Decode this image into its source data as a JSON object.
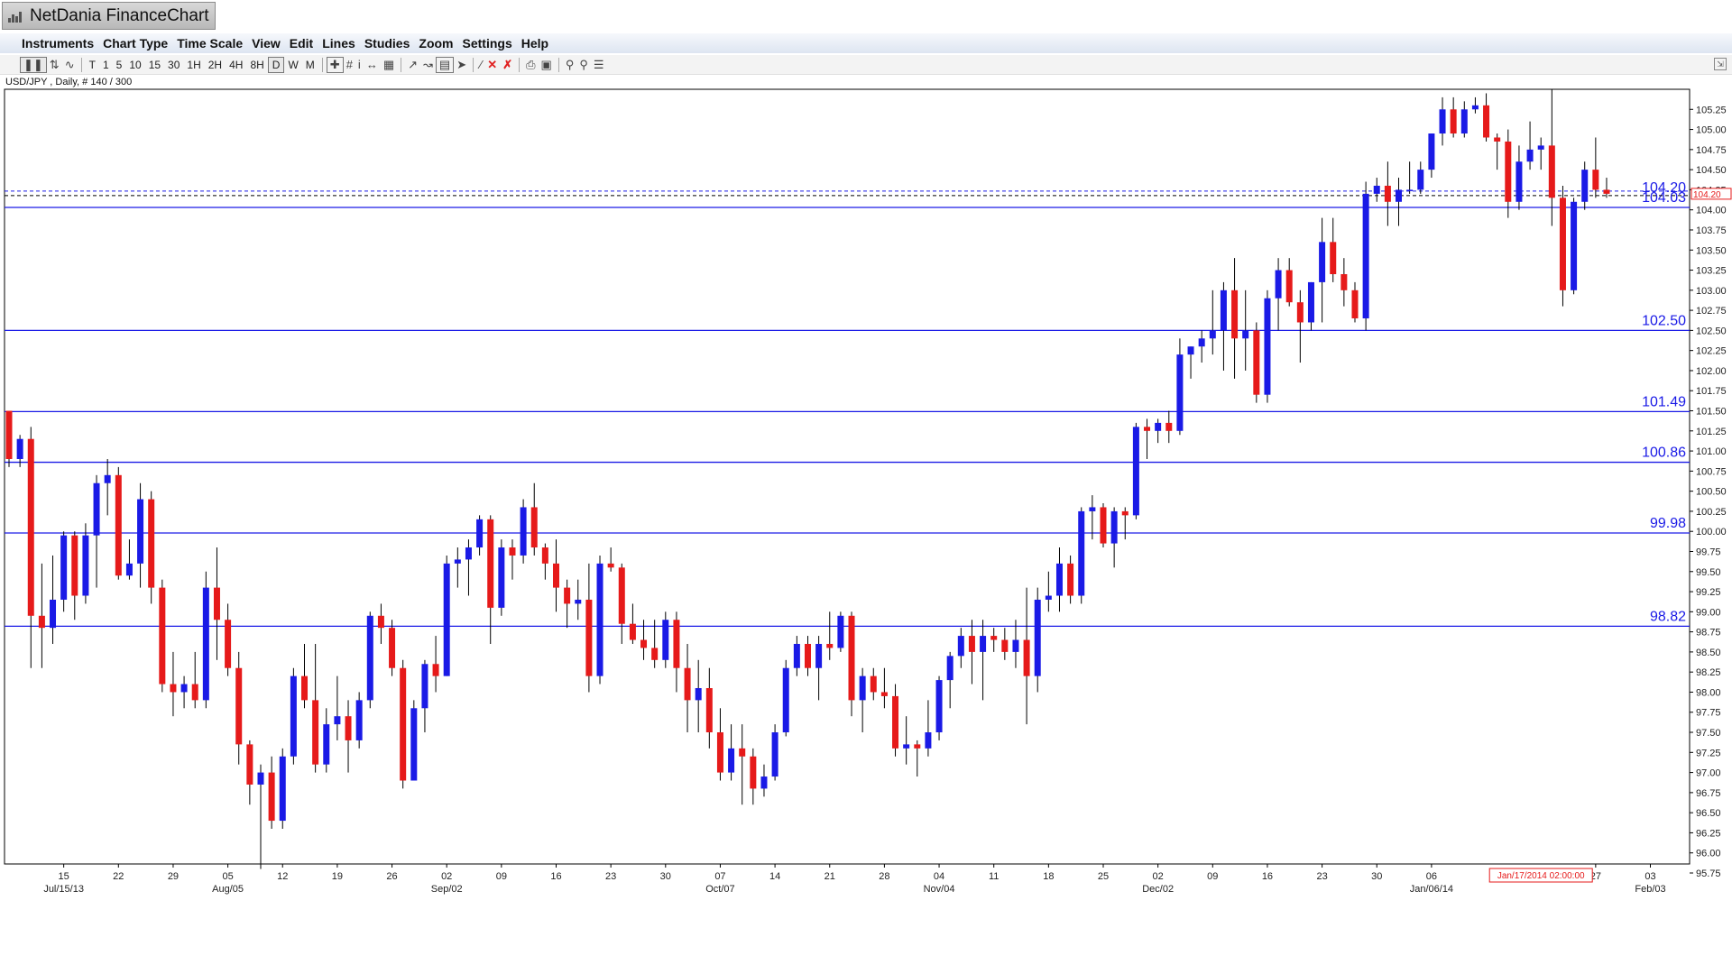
{
  "app": {
    "title": "NetDania FinanceChart"
  },
  "menu": [
    "Instruments",
    "Chart Type",
    "Time Scale",
    "View",
    "Edit",
    "Lines",
    "Studies",
    "Zoom",
    "Settings",
    "Help"
  ],
  "toolbar": {
    "timeframes": [
      "T",
      "1",
      "5",
      "10",
      "15",
      "30",
      "1H",
      "2H",
      "4H",
      "8H",
      "D",
      "W",
      "M"
    ],
    "selected": "D"
  },
  "instrument_label": "USD/JPY , Daily, # 140 / 300",
  "colors": {
    "up": "#1a1ae6",
    "down": "#e61a1a",
    "line": "#1a1ae6",
    "axis": "#000000",
    "marker": "#e61a1a"
  },
  "chart_data": {
    "type": "candlestick",
    "symbol": "USD/JPY",
    "ylim": [
      95.75,
      105.5
    ],
    "yticks": [
      95.75,
      96.0,
      96.25,
      96.5,
      96.75,
      97.0,
      97.25,
      97.5,
      97.75,
      98.0,
      98.25,
      98.5,
      98.75,
      99.0,
      99.25,
      99.5,
      99.75,
      100.0,
      100.25,
      100.5,
      100.75,
      101.0,
      101.25,
      101.5,
      101.75,
      102.0,
      102.25,
      102.5,
      102.75,
      103.0,
      103.25,
      103.5,
      103.75,
      104.0,
      104.25,
      104.5,
      104.75,
      105.0,
      105.25
    ],
    "x_ticks": [
      {
        "i": 5,
        "label": "15",
        "sub": "Jul/15/13"
      },
      {
        "i": 10,
        "label": "22",
        "sub": ""
      },
      {
        "i": 15,
        "label": "29",
        "sub": ""
      },
      {
        "i": 20,
        "label": "05",
        "sub": "Aug/05"
      },
      {
        "i": 25,
        "label": "12",
        "sub": ""
      },
      {
        "i": 30,
        "label": "19",
        "sub": ""
      },
      {
        "i": 35,
        "label": "26",
        "sub": ""
      },
      {
        "i": 40,
        "label": "02",
        "sub": "Sep/02"
      },
      {
        "i": 45,
        "label": "09",
        "sub": ""
      },
      {
        "i": 50,
        "label": "16",
        "sub": ""
      },
      {
        "i": 55,
        "label": "23",
        "sub": ""
      },
      {
        "i": 60,
        "label": "30",
        "sub": ""
      },
      {
        "i": 65,
        "label": "07",
        "sub": "Oct/07"
      },
      {
        "i": 70,
        "label": "14",
        "sub": ""
      },
      {
        "i": 75,
        "label": "21",
        "sub": ""
      },
      {
        "i": 80,
        "label": "28",
        "sub": ""
      },
      {
        "i": 85,
        "label": "04",
        "sub": "Nov/04"
      },
      {
        "i": 90,
        "label": "11",
        "sub": ""
      },
      {
        "i": 95,
        "label": "18",
        "sub": ""
      },
      {
        "i": 100,
        "label": "25",
        "sub": ""
      },
      {
        "i": 105,
        "label": "02",
        "sub": "Dec/02"
      },
      {
        "i": 110,
        "label": "09",
        "sub": ""
      },
      {
        "i": 115,
        "label": "16",
        "sub": ""
      },
      {
        "i": 120,
        "label": "23",
        "sub": ""
      },
      {
        "i": 125,
        "label": "30",
        "sub": ""
      },
      {
        "i": 130,
        "label": "06",
        "sub": "Jan/06/14"
      },
      {
        "i": 145,
        "label": "27",
        "sub": ""
      },
      {
        "i": 150,
        "label": "03",
        "sub": "Feb/03"
      }
    ],
    "cursor_date": {
      "i": 140,
      "label": "Jan/17/2014 02:00:00"
    },
    "hlines": [
      {
        "value": 104.03,
        "label": "104.03"
      },
      {
        "value": 102.5,
        "label": "102.50"
      },
      {
        "value": 101.49,
        "label": "101.49"
      },
      {
        "value": 100.86,
        "label": "100.86"
      },
      {
        "value": 99.98,
        "label": "99.98"
      },
      {
        "value": 98.82,
        "label": "98.82"
      }
    ],
    "last_price": {
      "value": 104.2,
      "label": "104.20"
    },
    "candles": [
      [
        101.5,
        101.5,
        100.8,
        100.9
      ],
      [
        100.9,
        101.2,
        100.8,
        101.15
      ],
      [
        101.15,
        101.3,
        98.3,
        98.95
      ],
      [
        98.95,
        99.6,
        98.3,
        98.8
      ],
      [
        98.8,
        99.7,
        98.6,
        99.15
      ],
      [
        99.15,
        100.0,
        99.0,
        99.95
      ],
      [
        99.95,
        100.0,
        98.9,
        99.2
      ],
      [
        99.2,
        100.1,
        99.1,
        99.95
      ],
      [
        99.95,
        100.7,
        99.3,
        100.6
      ],
      [
        100.6,
        100.9,
        100.2,
        100.7
      ],
      [
        100.7,
        100.8,
        99.4,
        99.45
      ],
      [
        99.45,
        99.9,
        99.4,
        99.6
      ],
      [
        99.6,
        100.6,
        99.3,
        100.4
      ],
      [
        100.4,
        100.5,
        99.1,
        99.3
      ],
      [
        99.3,
        99.4,
        98.0,
        98.1
      ],
      [
        98.1,
        98.5,
        97.7,
        98.0
      ],
      [
        98.0,
        98.2,
        97.8,
        98.1
      ],
      [
        98.1,
        98.5,
        97.8,
        97.9
      ],
      [
        97.9,
        99.5,
        97.8,
        99.3
      ],
      [
        99.3,
        99.8,
        98.4,
        98.9
      ],
      [
        98.9,
        99.1,
        98.2,
        98.3
      ],
      [
        98.3,
        98.5,
        97.1,
        97.35
      ],
      [
        97.35,
        97.4,
        96.6,
        96.85
      ],
      [
        96.85,
        97.1,
        95.8,
        97.0
      ],
      [
        97.0,
        97.2,
        96.3,
        96.4
      ],
      [
        96.4,
        97.3,
        96.3,
        97.2
      ],
      [
        97.2,
        98.3,
        97.1,
        98.2
      ],
      [
        98.2,
        98.6,
        97.8,
        97.9
      ],
      [
        97.9,
        98.6,
        97.0,
        97.1
      ],
      [
        97.1,
        97.8,
        97.0,
        97.6
      ],
      [
        97.6,
        98.2,
        97.4,
        97.7
      ],
      [
        97.7,
        97.9,
        97.0,
        97.4
      ],
      [
        97.4,
        98.0,
        97.3,
        97.9
      ],
      [
        97.9,
        99.0,
        97.8,
        98.95
      ],
      [
        98.95,
        99.1,
        98.6,
        98.8
      ],
      [
        98.8,
        98.9,
        98.2,
        98.3
      ],
      [
        98.3,
        98.4,
        96.8,
        96.9
      ],
      [
        96.9,
        97.9,
        96.9,
        97.8
      ],
      [
        97.8,
        98.4,
        97.5,
        98.35
      ],
      [
        98.35,
        98.7,
        98.0,
        98.2
      ],
      [
        98.2,
        99.7,
        98.2,
        99.6
      ],
      [
        99.6,
        99.8,
        99.3,
        99.65
      ],
      [
        99.65,
        99.9,
        99.2,
        99.8
      ],
      [
        99.8,
        100.2,
        99.7,
        100.15
      ],
      [
        100.15,
        100.2,
        98.6,
        99.05
      ],
      [
        99.05,
        99.9,
        98.95,
        99.8
      ],
      [
        99.8,
        99.9,
        99.4,
        99.7
      ],
      [
        99.7,
        100.4,
        99.6,
        100.3
      ],
      [
        100.3,
        100.6,
        99.7,
        99.8
      ],
      [
        99.8,
        99.85,
        99.4,
        99.6
      ],
      [
        99.6,
        99.9,
        99.0,
        99.3
      ],
      [
        99.3,
        99.4,
        98.8,
        99.1
      ],
      [
        99.1,
        99.4,
        98.9,
        99.15
      ],
      [
        99.15,
        99.6,
        98.0,
        98.2
      ],
      [
        98.2,
        99.7,
        98.1,
        99.6
      ],
      [
        99.6,
        99.8,
        99.5,
        99.55
      ],
      [
        99.55,
        99.6,
        98.6,
        98.85
      ],
      [
        98.85,
        99.1,
        98.6,
        98.65
      ],
      [
        98.65,
        98.9,
        98.4,
        98.55
      ],
      [
        98.55,
        98.9,
        98.3,
        98.4
      ],
      [
        98.4,
        99.0,
        98.3,
        98.9
      ],
      [
        98.9,
        99.0,
        98.0,
        98.3
      ],
      [
        98.3,
        98.6,
        97.5,
        97.9
      ],
      [
        97.9,
        98.4,
        97.5,
        98.05
      ],
      [
        98.05,
        98.3,
        97.3,
        97.5
      ],
      [
        97.5,
        97.8,
        96.9,
        97.0
      ],
      [
        97.0,
        97.6,
        96.9,
        97.3
      ],
      [
        97.3,
        97.6,
        96.6,
        97.2
      ],
      [
        97.2,
        97.3,
        96.6,
        96.8
      ],
      [
        96.8,
        97.1,
        96.7,
        96.95
      ],
      [
        96.95,
        97.6,
        96.9,
        97.5
      ],
      [
        97.5,
        98.4,
        97.45,
        98.3
      ],
      [
        98.3,
        98.7,
        98.2,
        98.6
      ],
      [
        98.6,
        98.7,
        98.2,
        98.3
      ],
      [
        98.3,
        98.7,
        97.9,
        98.6
      ],
      [
        98.6,
        99.0,
        98.4,
        98.55
      ],
      [
        98.55,
        99.0,
        98.5,
        98.95
      ],
      [
        98.95,
        99.0,
        97.7,
        97.9
      ],
      [
        97.9,
        98.3,
        97.5,
        98.2
      ],
      [
        98.2,
        98.3,
        97.9,
        98.0
      ],
      [
        98.0,
        98.3,
        97.8,
        97.95
      ],
      [
        97.95,
        98.1,
        97.2,
        97.3
      ],
      [
        97.3,
        97.7,
        97.1,
        97.35
      ],
      [
        97.35,
        97.4,
        96.95,
        97.3
      ],
      [
        97.3,
        97.9,
        97.2,
        97.5
      ],
      [
        97.5,
        98.2,
        97.4,
        98.15
      ],
      [
        98.15,
        98.5,
        97.8,
        98.45
      ],
      [
        98.45,
        98.8,
        98.3,
        98.7
      ],
      [
        98.7,
        98.9,
        98.1,
        98.5
      ],
      [
        98.5,
        98.9,
        97.9,
        98.7
      ],
      [
        98.7,
        98.8,
        98.5,
        98.65
      ],
      [
        98.65,
        98.8,
        98.4,
        98.5
      ],
      [
        98.5,
        98.9,
        98.3,
        98.65
      ],
      [
        98.65,
        99.3,
        97.6,
        98.2
      ],
      [
        98.2,
        99.3,
        98.0,
        99.15
      ],
      [
        99.15,
        99.5,
        99.0,
        99.2
      ],
      [
        99.2,
        99.8,
        99.0,
        99.6
      ],
      [
        99.6,
        99.7,
        99.1,
        99.2
      ],
      [
        99.2,
        100.3,
        99.1,
        100.25
      ],
      [
        100.25,
        100.45,
        99.9,
        100.3
      ],
      [
        100.3,
        100.35,
        99.8,
        99.85
      ],
      [
        99.85,
        100.3,
        99.55,
        100.25
      ],
      [
        100.25,
        100.3,
        99.9,
        100.2
      ],
      [
        100.2,
        101.35,
        100.15,
        101.3
      ],
      [
        101.3,
        101.4,
        100.9,
        101.25
      ],
      [
        101.25,
        101.4,
        101.1,
        101.35
      ],
      [
        101.35,
        101.5,
        101.1,
        101.25
      ],
      [
        101.25,
        102.4,
        101.2,
        102.2
      ],
      [
        102.2,
        102.3,
        101.9,
        102.3
      ],
      [
        102.3,
        102.5,
        102.1,
        102.4
      ],
      [
        102.4,
        103.0,
        102.2,
        102.5
      ],
      [
        102.5,
        103.1,
        102.0,
        103.0
      ],
      [
        103.0,
        103.4,
        101.9,
        102.4
      ],
      [
        102.4,
        103.0,
        102.0,
        102.5
      ],
      [
        102.5,
        102.6,
        101.6,
        101.7
      ],
      [
        101.7,
        103.0,
        101.6,
        102.9
      ],
      [
        102.9,
        103.4,
        102.5,
        103.25
      ],
      [
        103.25,
        103.4,
        102.8,
        102.85
      ],
      [
        102.85,
        103.0,
        102.1,
        102.6
      ],
      [
        102.6,
        103.1,
        102.5,
        103.1
      ],
      [
        103.1,
        103.9,
        102.6,
        103.6
      ],
      [
        103.6,
        103.9,
        103.1,
        103.2
      ],
      [
        103.2,
        103.4,
        102.8,
        103.0
      ],
      [
        103.0,
        103.1,
        102.6,
        102.65
      ],
      [
        102.65,
        104.35,
        102.5,
        104.2
      ],
      [
        104.2,
        104.4,
        104.1,
        104.3
      ],
      [
        104.3,
        104.6,
        103.8,
        104.1
      ],
      [
        104.1,
        104.4,
        103.8,
        104.25
      ],
      [
        104.25,
        104.6,
        104.2,
        104.25
      ],
      [
        104.25,
        104.6,
        104.2,
        104.5
      ],
      [
        104.5,
        104.95,
        104.4,
        104.95
      ],
      [
        104.95,
        105.4,
        104.8,
        105.25
      ],
      [
        105.25,
        105.4,
        104.9,
        104.95
      ],
      [
        104.95,
        105.35,
        104.9,
        105.25
      ],
      [
        105.25,
        105.4,
        105.2,
        105.3
      ],
      [
        105.3,
        105.45,
        104.85,
        104.9
      ],
      [
        104.9,
        104.95,
        104.5,
        104.85
      ],
      [
        104.85,
        105.0,
        103.9,
        104.1
      ],
      [
        104.1,
        104.8,
        104.0,
        104.6
      ],
      [
        104.6,
        105.1,
        104.5,
        104.75
      ],
      [
        104.75,
        104.9,
        104.5,
        104.8
      ],
      [
        104.8,
        105.5,
        103.8,
        104.15
      ],
      [
        104.15,
        104.3,
        102.8,
        103.0
      ],
      [
        103.0,
        104.15,
        102.95,
        104.1
      ],
      [
        104.1,
        104.6,
        104.0,
        104.5
      ],
      [
        104.5,
        104.9,
        104.15,
        104.25
      ],
      [
        104.25,
        104.4,
        104.15,
        104.2
      ]
    ]
  }
}
